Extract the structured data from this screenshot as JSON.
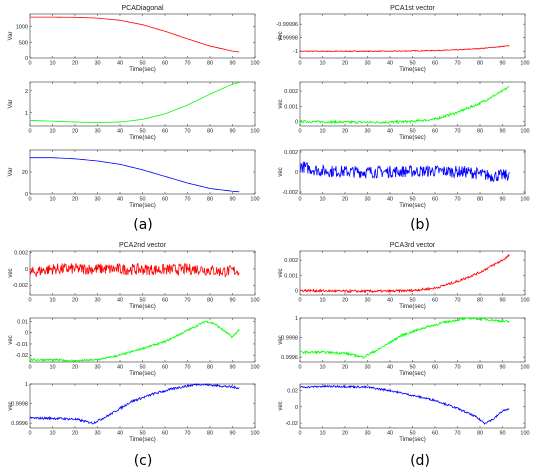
{
  "panel_labels": [
    "(a)",
    "(b)",
    "(c)",
    "(d)"
  ],
  "chart_data": [
    {
      "panel": "(a)",
      "title": "PCADiagonal",
      "type": "line",
      "subplots": [
        {
          "ylabel": "Var",
          "xlabel": "Time(sec)",
          "xlim": [
            0,
            100
          ],
          "ylim": [
            0,
            1400
          ],
          "xticks": [
            0,
            10,
            20,
            30,
            40,
            50,
            60,
            70,
            80,
            90,
            100
          ],
          "yticks": [
            0,
            500,
            1000
          ],
          "ytick_labels": [
            "0",
            "500",
            "1000"
          ],
          "series": [
            {
              "color": "#ff0000",
              "noise": 0,
              "x": [
                0,
                10,
                20,
                30,
                40,
                50,
                60,
                70,
                80,
                90,
                93
              ],
              "y": [
                1300,
                1300,
                1295,
                1270,
                1200,
                1060,
                850,
                610,
                380,
                220,
                190
              ]
            }
          ]
        },
        {
          "ylabel": "Var",
          "xlabel": "Time(sec)",
          "xlim": [
            0,
            100
          ],
          "ylim": [
            0.4,
            2.4
          ],
          "xticks": [
            0,
            10,
            20,
            30,
            40,
            50,
            60,
            70,
            80,
            90,
            100
          ],
          "yticks": [
            1,
            2
          ],
          "ytick_labels": [
            "1",
            "2"
          ],
          "series": [
            {
              "color": "#00ff00",
              "noise": 0,
              "x": [
                0,
                10,
                20,
                30,
                40,
                50,
                60,
                70,
                80,
                90,
                93
              ],
              "y": [
                0.65,
                0.62,
                0.58,
                0.56,
                0.58,
                0.7,
                0.95,
                1.35,
                1.85,
                2.3,
                2.38
              ]
            }
          ]
        },
        {
          "ylabel": "Var",
          "xlabel": "Time(sec)",
          "xlim": [
            0,
            100
          ],
          "ylim": [
            0,
            40
          ],
          "xticks": [
            0,
            10,
            20,
            30,
            40,
            50,
            60,
            70,
            80,
            90,
            100
          ],
          "yticks": [
            0,
            20
          ],
          "ytick_labels": [
            "0",
            "20"
          ],
          "series": [
            {
              "color": "#0000ff",
              "noise": 0,
              "x": [
                0,
                10,
                20,
                30,
                40,
                50,
                60,
                70,
                80,
                90,
                93
              ],
              "y": [
                33,
                33,
                32,
                30,
                27,
                22,
                16,
                10,
                5,
                2.5,
                2
              ]
            }
          ]
        }
      ]
    },
    {
      "panel": "(b)",
      "title": "PCA1st vector",
      "type": "line",
      "subplots": [
        {
          "ylabel": "vec",
          "xlabel": "Time(sec)",
          "xlim": [
            0,
            100
          ],
          "ylim": [
            -1.00001,
            -0.999945
          ],
          "xticks": [
            0,
            10,
            20,
            30,
            40,
            50,
            60,
            70,
            80,
            90,
            100
          ],
          "yticks": [
            -1,
            -0.99998,
            -0.99996
          ],
          "ytick_labels": [
            "-1",
            "-0.99998",
            "-0.99996"
          ],
          "series": [
            {
              "color": "#ff0000",
              "noise": 6e-07,
              "x": [
                0,
                20,
                40,
                60,
                70,
                80,
                90,
                93
              ],
              "y": [
                -1,
                -1,
                -1,
                -0.999999,
                -0.999998,
                -0.999996,
                -0.999993,
                -0.999992
              ]
            }
          ]
        },
        {
          "ylabel": "vec",
          "xlabel": "Time(sec)",
          "xlim": [
            0,
            100
          ],
          "ylim": [
            -0.0003,
            0.0026
          ],
          "xticks": [
            0,
            10,
            20,
            30,
            40,
            50,
            60,
            70,
            80,
            90,
            100
          ],
          "yticks": [
            0,
            0.001,
            0.002
          ],
          "ytick_labels": [
            "0",
            "0.001",
            "0.002"
          ],
          "series": [
            {
              "color": "#00ff00",
              "noise": 8e-05,
              "x": [
                0,
                20,
                40,
                50,
                60,
                70,
                80,
                90,
                93
              ],
              "y": [
                0,
                -5e-05,
                -5e-05,
                0,
                0.00015,
                0.0006,
                0.0012,
                0.002,
                0.0023
              ]
            }
          ]
        },
        {
          "ylabel": "vec",
          "xlabel": "Time(sec)",
          "xlim": [
            0,
            100
          ],
          "ylim": [
            -0.0022,
            0.0022
          ],
          "xticks": [
            0,
            10,
            20,
            30,
            40,
            50,
            60,
            70,
            80,
            90,
            100
          ],
          "yticks": [
            -0.002,
            0,
            0.002
          ],
          "ytick_labels": [
            "-0.002",
            "0",
            "0.002"
          ],
          "series": [
            {
              "color": "#0000ff",
              "noise": 0.0006,
              "x": [
                0,
                5,
                10,
                30,
                60,
                75,
                85,
                93
              ],
              "y": [
                0.0006,
                0.0003,
                0.0001,
                0,
                0.0001,
                0,
                -0.0004,
                -0.0003
              ]
            }
          ]
        }
      ]
    },
    {
      "panel": "(c)",
      "title": "PCA2nd vector",
      "type": "line",
      "subplots": [
        {
          "ylabel": "vec",
          "xlabel": "Time(sec)",
          "xlim": [
            0,
            100
          ],
          "ylim": [
            -0.0032,
            0.0022
          ],
          "xticks": [
            0,
            10,
            20,
            30,
            40,
            50,
            60,
            70,
            80,
            90,
            100
          ],
          "yticks": [
            -0.002,
            0,
            0.002
          ],
          "ytick_labels": [
            "-0.002",
            "0",
            "0.002"
          ],
          "series": [
            {
              "color": "#ff0000",
              "noise": 0.0007,
              "x": [
                0,
                5,
                10,
                30,
                60,
                75,
                85,
                93
              ],
              "y": [
                -0.0005,
                -0.0002,
                0,
                0,
                -0.0001,
                0,
                -0.0003,
                -0.0002
              ]
            }
          ]
        },
        {
          "ylabel": "vec",
          "xlabel": "Time(sec)",
          "xlim": [
            0,
            100
          ],
          "ylim": [
            -0.026,
            0.013
          ],
          "xticks": [
            0,
            10,
            20,
            30,
            40,
            50,
            60,
            70,
            80,
            90,
            100
          ],
          "yticks": [
            -0.02,
            -0.01,
            0,
            0.01
          ],
          "ytick_labels": [
            "-0.02",
            "-0.01",
            "0",
            "0.01"
          ],
          "series": [
            {
              "color": "#00ff00",
              "noise": 0.0009,
              "x": [
                0,
                10,
                20,
                30,
                40,
                50,
                60,
                70,
                78,
                82,
                86,
                90,
                93
              ],
              "y": [
                -0.024,
                -0.024,
                -0.025,
                -0.024,
                -0.02,
                -0.014,
                -0.008,
                0.002,
                0.01,
                0.008,
                0.002,
                -0.004,
                0.003
              ]
            }
          ]
        },
        {
          "ylabel": "vec",
          "xlabel": "Time(sec)",
          "xlim": [
            0,
            100
          ],
          "ylim": [
            0.99955,
            1.0
          ],
          "xticks": [
            0,
            10,
            20,
            30,
            40,
            50,
            60,
            70,
            80,
            90,
            100
          ],
          "yticks": [
            0.9996,
            0.9998,
            1
          ],
          "ytick_labels": [
            "0.9996",
            "0.9998",
            "1"
          ],
          "series": [
            {
              "color": "#0000ff",
              "noise": 1.2e-05,
              "x": [
                0,
                10,
                20,
                28,
                35,
                45,
                55,
                65,
                75,
                85,
                93
              ],
              "y": [
                0.99965,
                0.99965,
                0.99964,
                0.9996,
                0.99968,
                0.99982,
                0.9999,
                0.99996,
                1.0,
                0.99998,
                0.99996
              ]
            }
          ]
        }
      ]
    },
    {
      "panel": "(d)",
      "title": "PCA3rd vector",
      "type": "line",
      "subplots": [
        {
          "ylabel": "vec",
          "xlabel": "Time(sec)",
          "xlim": [
            0,
            100
          ],
          "ylim": [
            -0.0003,
            0.0026
          ],
          "xticks": [
            0,
            10,
            20,
            30,
            40,
            50,
            60,
            70,
            80,
            90,
            100
          ],
          "yticks": [
            0,
            0.001,
            0.002
          ],
          "ytick_labels": [
            "0",
            "0.001",
            "0.002"
          ],
          "series": [
            {
              "color": "#ff0000",
              "noise": 8e-05,
              "x": [
                0,
                20,
                40,
                50,
                60,
                70,
                80,
                90,
                93
              ],
              "y": [
                0,
                -5e-05,
                -5e-05,
                0,
                0.00015,
                0.0006,
                0.0012,
                0.002,
                0.0023
              ]
            }
          ]
        },
        {
          "ylabel": "vec",
          "xlabel": "Time(sec)",
          "xlim": [
            0,
            100
          ],
          "ylim": [
            0.99955,
            1.0
          ],
          "xticks": [
            0,
            10,
            20,
            30,
            40,
            50,
            60,
            70,
            80,
            90,
            100
          ],
          "yticks": [
            0.9996,
            0.9998,
            1
          ],
          "ytick_labels": [
            "0.9996",
            "0.9998",
            "1"
          ],
          "series": [
            {
              "color": "#00ff00",
              "noise": 1.2e-05,
              "x": [
                0,
                10,
                20,
                28,
                35,
                45,
                55,
                65,
                75,
                85,
                93
              ],
              "y": [
                0.99965,
                0.99965,
                0.99964,
                0.9996,
                0.99968,
                0.99982,
                0.9999,
                0.99996,
                1.0,
                0.99998,
                0.99996
              ]
            }
          ]
        },
        {
          "ylabel": "vec",
          "xlabel": "Time(sec)",
          "xlim": [
            0,
            100
          ],
          "ylim": [
            -0.026,
            0.028
          ],
          "xticks": [
            0,
            10,
            20,
            30,
            40,
            50,
            60,
            70,
            80,
            90,
            100
          ],
          "yticks": [
            -0.02,
            0,
            0.02
          ],
          "ytick_labels": [
            "-0.02",
            "0",
            "0.02"
          ],
          "series": [
            {
              "color": "#0000ff",
              "noise": 0.0012,
              "x": [
                0,
                10,
                20,
                30,
                40,
                50,
                60,
                70,
                78,
                82,
                86,
                90,
                93
              ],
              "y": [
                0.024,
                0.025,
                0.025,
                0.024,
                0.02,
                0.014,
                0.008,
                -0.002,
                -0.012,
                -0.02,
                -0.015,
                -0.005,
                -0.003
              ]
            }
          ]
        }
      ]
    }
  ]
}
